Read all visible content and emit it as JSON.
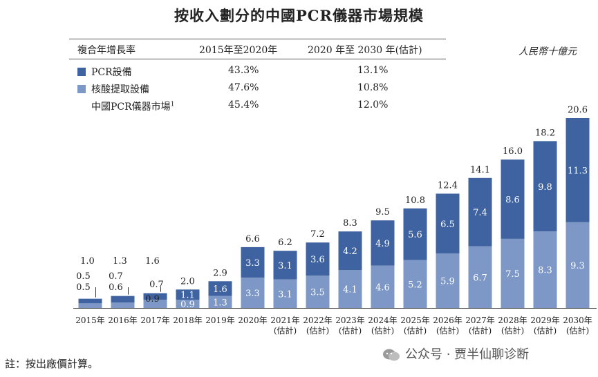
{
  "title": "按收入劃分的中國PCR儀器市場規模",
  "unit": "人民幣十億元",
  "growth_table": {
    "header": [
      "複合年增長率",
      "2015年至2020年",
      "2020 年至 2030 年(估計)"
    ],
    "rows": [
      {
        "label": "PCR設備",
        "cagr_2015_2020": "43.3%",
        "cagr_2020_2030": "13.1%",
        "swatch": "#3f63a0"
      },
      {
        "label": "核酸提取設備",
        "cagr_2015_2020": "47.6%",
        "cagr_2020_2030": "10.8%",
        "swatch": "#7d98c6"
      },
      {
        "label": "中國PCR儀器市場",
        "sup": "1",
        "cagr_2015_2020": "45.4%",
        "cagr_2020_2030": "12.0%"
      }
    ]
  },
  "chart_data": {
    "type": "bar",
    "stacked": true,
    "categories": [
      "2015年",
      "2016年",
      "2017年",
      "2018年",
      "2019年",
      "2020年",
      "2021年\n(估計)",
      "2022年\n(估計)",
      "2023年\n(估計)",
      "2024年\n(估計)",
      "2025年\n(估計)",
      "2026年\n(估計)",
      "2027年\n(估計)",
      "2028年\n(估計)",
      "2029年\n(估計)",
      "2030年\n(估計)"
    ],
    "series": [
      {
        "name": "核酸提取設備",
        "color": "#7d98c6",
        "values": [
          0.5,
          0.6,
          0.9,
          0.9,
          1.3,
          3.3,
          3.1,
          3.5,
          4.1,
          4.6,
          5.2,
          5.9,
          6.7,
          7.5,
          8.3,
          9.3
        ],
        "labels": [
          "0.5",
          "0.6",
          "0.9",
          "0.9",
          "1.3",
          "3.3",
          "3.1",
          "3.5",
          "4.1",
          "4.6",
          "5.2",
          "5.9",
          "6.7",
          "7.5",
          "8.3",
          "9.3"
        ]
      },
      {
        "name": "PCR設備",
        "color": "#3f63a0",
        "values": [
          0.5,
          0.7,
          0.7,
          1.1,
          1.6,
          3.3,
          3.1,
          3.6,
          4.2,
          4.9,
          5.6,
          6.5,
          7.4,
          8.6,
          9.8,
          11.3
        ],
        "labels": [
          "0.5",
          "0.7",
          "0.7",
          "1.1",
          "1.6",
          "3.3",
          "3.1",
          "3.6",
          "4.2",
          "4.9",
          "5.6",
          "6.5",
          "7.4",
          "8.6",
          "9.8",
          "11.3"
        ]
      }
    ],
    "totals": [
      "1.0",
      "1.3",
      "1.6",
      "2.0",
      "2.9",
      "6.6",
      "6.2",
      "7.2",
      "8.3",
      "9.5",
      "10.8",
      "12.4",
      "14.1",
      "16.0",
      "18.2",
      "20.6"
    ],
    "ylim": [
      0,
      20.6
    ],
    "xlabel": "",
    "ylabel": ""
  },
  "note": "註：按出廠價計算。",
  "watermark": "公众号 · 贾半仙聊诊断"
}
